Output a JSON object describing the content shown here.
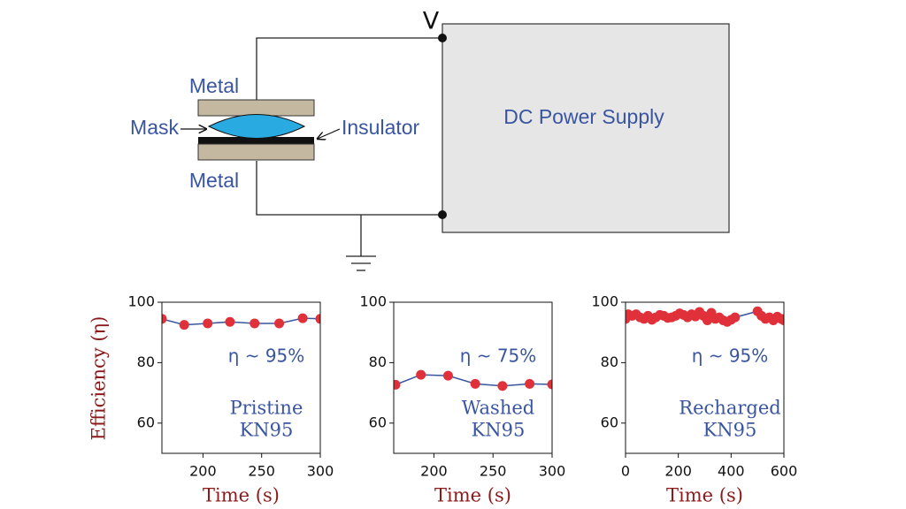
{
  "diagram": {
    "voltage_label": "V",
    "supply_label": "DC Power Supply",
    "top_plate": "Metal",
    "bottom_plate": "Metal",
    "mask": "Mask",
    "insulator": "Insulator"
  },
  "chart_data": [
    {
      "type": "line",
      "ylabel": "Efficiency (η)",
      "xlabel": "Time (s)",
      "annotation": "η ~ 95%",
      "sample_label": [
        "Pristine",
        "KN95"
      ],
      "xlim": [
        165,
        300
      ],
      "xticks": [
        200,
        250,
        300
      ],
      "ylim": [
        50,
        100
      ],
      "yticks": [
        60,
        80,
        100
      ],
      "series": [
        {
          "color": "#3a55a0",
          "marker_color": "#e0303a",
          "x": [
            165,
            184,
            204,
            223,
            244,
            265,
            285,
            300
          ],
          "values": [
            94.5,
            92.5,
            93,
            93.5,
            93,
            93,
            94.7,
            94.5
          ]
        }
      ]
    },
    {
      "type": "line",
      "xlabel": "Time (s)",
      "annotation": "η ~ 75%",
      "sample_label": [
        "Washed",
        "KN95"
      ],
      "xlim": [
        166,
        300
      ],
      "xticks": [
        200,
        250,
        300
      ],
      "ylim": [
        50,
        100
      ],
      "yticks": [
        60,
        80,
        100
      ],
      "series": [
        {
          "color": "#3a55a0",
          "marker_color": "#e0303a",
          "x": [
            167.5,
            189,
            212,
            235,
            258,
            281,
            300
          ],
          "values": [
            72.7,
            76,
            75.7,
            73,
            72.3,
            73,
            72.8
          ]
        }
      ]
    },
    {
      "type": "line",
      "xlabel": "Time (s)",
      "annotation": "η ~ 95%",
      "sample_label": [
        "Recharged",
        "KN95"
      ],
      "xlim": [
        0,
        600
      ],
      "xticks": [
        0,
        200,
        400,
        600
      ],
      "ylim": [
        50,
        100
      ],
      "yticks": [
        60,
        80,
        100
      ],
      "series": [
        {
          "color": "#3a55a0",
          "marker_color": "#e0303a",
          "x": [
            0,
            10,
            25,
            40,
            55,
            70,
            85,
            100,
            115,
            130,
            145,
            160,
            175,
            190,
            205,
            220,
            235,
            250,
            265,
            280,
            295,
            310,
            325,
            340,
            355,
            370,
            385,
            400,
            415,
            500,
            515,
            530,
            545,
            560,
            575,
            590,
            600
          ],
          "values": [
            94.5,
            96,
            95.5,
            96,
            95,
            94.5,
            95.5,
            94.2,
            95,
            95.8,
            95.5,
            94.8,
            95,
            95.5,
            96.3,
            95.8,
            95,
            96,
            95.3,
            96.8,
            95.5,
            94,
            96.5,
            94.5,
            95,
            94,
            93.5,
            94.2,
            95,
            97,
            95.5,
            94.5,
            95,
            94,
            95.2,
            94.5,
            94
          ]
        }
      ]
    }
  ]
}
